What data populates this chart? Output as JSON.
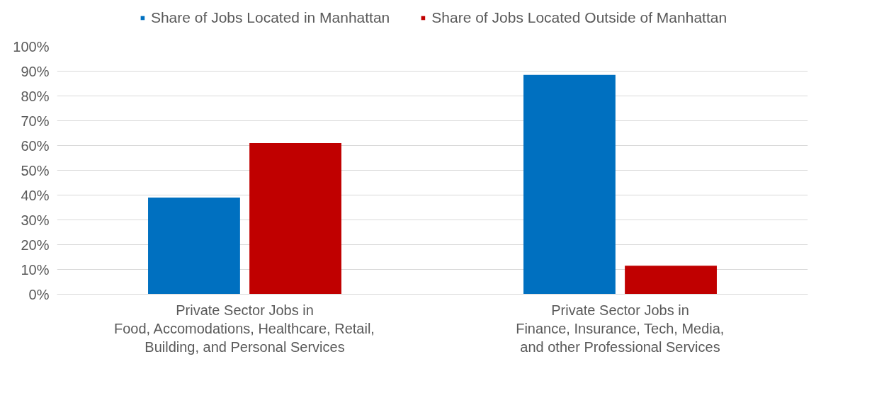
{
  "chart_data": {
    "type": "bar",
    "categories": [
      "Private Sector Jobs in\nFood, Accomodations, Healthcare, Retail,\nBuilding, and Personal Services",
      "Private Sector Jobs in\nFinance, Insurance, Tech, Media,\nand other Professional Services"
    ],
    "series": [
      {
        "name": "Share of Jobs Located in Manhattan",
        "color": "#0070c0",
        "values": [
          39,
          88.5
        ]
      },
      {
        "name": "Share of Jobs Located Outside of Manhattan",
        "color": "#c00000",
        "values": [
          61,
          11.5
        ]
      }
    ],
    "ylim": [
      0,
      100
    ],
    "yticks": [
      {
        "value": 0,
        "label": "0%"
      },
      {
        "value": 10,
        "label": "10%"
      },
      {
        "value": 20,
        "label": "20%"
      },
      {
        "value": 30,
        "label": "30%"
      },
      {
        "value": 40,
        "label": "40%"
      },
      {
        "value": 50,
        "label": "50%"
      },
      {
        "value": 60,
        "label": "60%"
      },
      {
        "value": 70,
        "label": "70%"
      },
      {
        "value": 80,
        "label": "80%"
      },
      {
        "value": 90,
        "label": "90%"
      },
      {
        "value": 100,
        "label": "100%"
      }
    ],
    "grid": "y",
    "legend": "top"
  }
}
